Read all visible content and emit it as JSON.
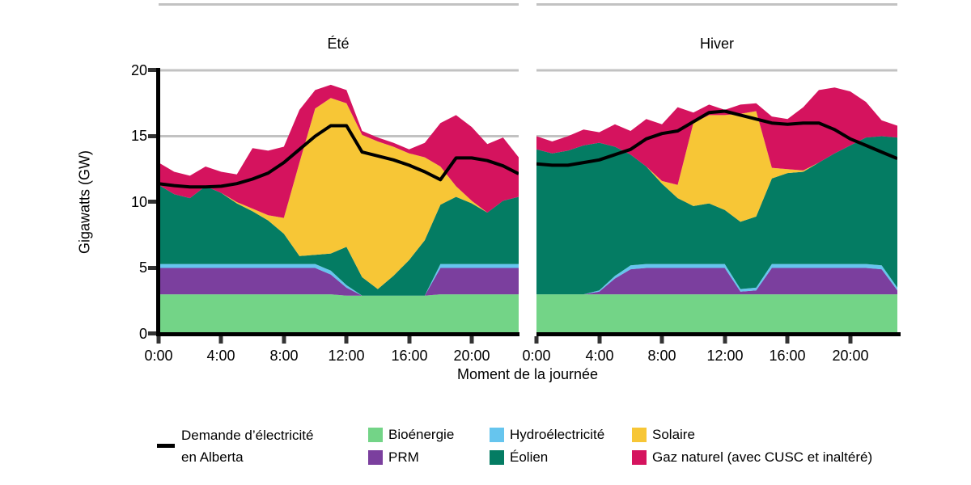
{
  "figure": {
    "y_axis_title": "Gigawatts (GW)",
    "x_axis_title": "Moment de la journée",
    "y_ticks": [
      "0",
      "5",
      "10",
      "15",
      "20"
    ],
    "x_ticks": [
      "0:00",
      "4:00",
      "8:00",
      "12:00",
      "16:00",
      "20:00"
    ],
    "panel_titles": {
      "summer": "Été",
      "winter": "Hiver"
    }
  },
  "legend": {
    "demand": {
      "label_line1": "Demande d’électricité",
      "label_line2": "en Alberta",
      "color": "#000000"
    },
    "items": [
      {
        "label": "Bioénergie",
        "color": "#73D487"
      },
      {
        "label": "PRM",
        "color": "#7B3F9E"
      },
      {
        "label": "Hydroélectricité",
        "color": "#66C5EE"
      },
      {
        "label": "Éolien",
        "color": "#047C63"
      },
      {
        "label": "Solaire",
        "color": "#F7C636"
      },
      {
        "label": "Gaz naturel (avec CUSC et inaltéré)",
        "color": "#D5135E"
      }
    ]
  },
  "chart_data": {
    "type": "area",
    "title": "",
    "xlabel": "Moment de la journée",
    "ylabel": "Gigawatts (GW)",
    "x": [
      0,
      1,
      2,
      3,
      4,
      5,
      6,
      7,
      8,
      9,
      10,
      11,
      12,
      13,
      14,
      15,
      16,
      17,
      18,
      19,
      20,
      21,
      22,
      23
    ],
    "ylim": [
      0,
      20
    ],
    "gridlines": [
      5,
      10,
      15,
      20,
      25
    ],
    "colors": {
      "gridline": "#C2C2C2",
      "demand": "#000000"
    },
    "stack_order": [
      "Bioénergie",
      "PRM",
      "Hydroélectricité",
      "Éolien",
      "Solaire",
      "Gaz naturel (avec CUSC et inaltéré)"
    ],
    "panels": [
      {
        "id": "summer",
        "title": "Été",
        "series": [
          {
            "name": "Bioénergie",
            "color": "#73D487",
            "values": [
              3,
              3,
              3,
              3,
              3,
              3,
              3,
              3,
              3,
              3,
              3,
              3,
              2.9,
              2.9,
              2.9,
              2.9,
              2.9,
              2.9,
              3,
              3,
              3,
              3,
              3,
              3
            ]
          },
          {
            "name": "PRM",
            "color": "#7B3F9E",
            "values": [
              2,
              2,
              2,
              2,
              2,
              2,
              2,
              2,
              2,
              2,
              2,
              1.5,
              0.6,
              0,
              0,
              0,
              0,
              0,
              2,
              2,
              2,
              2,
              2,
              2
            ]
          },
          {
            "name": "Hydroélectricité",
            "color": "#66C5EE",
            "values": [
              0.3,
              0.3,
              0.3,
              0.3,
              0.3,
              0.3,
              0.3,
              0.3,
              0.3,
              0.3,
              0.3,
              0.3,
              0.2,
              0,
              0,
              0,
              0,
              0,
              0.3,
              0.3,
              0.3,
              0.3,
              0.3,
              0.3
            ]
          },
          {
            "name": "Éolien",
            "color": "#047C63",
            "values": [
              6,
              5.3,
              5,
              5.9,
              5.4,
              4.6,
              4,
              3.3,
              2.3,
              0.6,
              0.7,
              1.3,
              2.9,
              1.4,
              0.5,
              1.5,
              2.7,
              4.2,
              4.5,
              5.1,
              4.6,
              3.9,
              4.8,
              5.1
            ]
          },
          {
            "name": "Solaire",
            "color": "#F7C636",
            "values": [
              0,
              0,
              0,
              0,
              0,
              0.1,
              0.2,
              0.4,
              1.2,
              7.1,
              11.1,
              11.8,
              10.9,
              10.8,
              11.2,
              9.8,
              8.1,
              6.3,
              2.9,
              0.8,
              0.2,
              0,
              0,
              0
            ]
          },
          {
            "name": "Gaz naturel (avec CUSC et inaltéré)",
            "color": "#D5135E",
            "values": [
              1.7,
              1.7,
              1.7,
              1.5,
              1.6,
              2.1,
              4.6,
              4.9,
              5.4,
              4,
              1.4,
              1,
              1,
              0.3,
              0.3,
              0.3,
              0.3,
              1.1,
              3.3,
              5.4,
              5.6,
              5.2,
              4.8,
              3
            ]
          }
        ],
        "demand": {
          "name": "Demande d’électricité en Alberta",
          "color": "#000000",
          "values": [
            11.4,
            11.25,
            11.15,
            11.15,
            11.2,
            11.4,
            11.75,
            12.2,
            13,
            14,
            15,
            15.8,
            15.8,
            13.8,
            13.5,
            13.2,
            12.8,
            12.3,
            11.7,
            13.35,
            13.35,
            13.15,
            12.75,
            12.15
          ]
        }
      },
      {
        "id": "winter",
        "title": "Hiver",
        "series": [
          {
            "name": "Bioénergie",
            "color": "#73D487",
            "values": [
              3,
              3,
              3,
              3,
              3,
              3,
              3,
              3,
              3,
              3,
              3,
              3,
              3,
              3,
              3,
              3,
              3,
              3,
              3,
              3,
              3,
              3,
              3,
              3
            ]
          },
          {
            "name": "PRM",
            "color": "#7B3F9E",
            "values": [
              0,
              0,
              0,
              0,
              0.2,
              1.2,
              1.9,
              2,
              2,
              2,
              2,
              2,
              2,
              0.2,
              0.3,
              2,
              2,
              2,
              2,
              2,
              2,
              2,
              1.9,
              0.3
            ]
          },
          {
            "name": "Hydroélectricité",
            "color": "#66C5EE",
            "values": [
              0,
              0,
              0,
              0,
              0.1,
              0.2,
              0.3,
              0.3,
              0.3,
              0.3,
              0.3,
              0.3,
              0.3,
              0.2,
              0.2,
              0.3,
              0.3,
              0.3,
              0.3,
              0.3,
              0.3,
              0.3,
              0.3,
              0.2
            ]
          },
          {
            "name": "Éolien",
            "color": "#047C63",
            "values": [
              11,
              10.7,
              10.9,
              11.3,
              11.2,
              9.8,
              8.4,
              7.4,
              6.1,
              5,
              4.4,
              4.6,
              4.1,
              5.1,
              5.4,
              6.5,
              6.9,
              7,
              7.7,
              8.4,
              9,
              9.6,
              9.8,
              11.4
            ]
          },
          {
            "name": "Solaire",
            "color": "#F7C636",
            "values": [
              0,
              0,
              0,
              0,
              0,
              0,
              0,
              0,
              0.2,
              1,
              6.3,
              6.7,
              7.2,
              8.2,
              8,
              0.8,
              0.3,
              0.1,
              0,
              0,
              0,
              0,
              0,
              0
            ]
          },
          {
            "name": "Gaz naturel (avec CUSC et inaltéré)",
            "color": "#D5135E",
            "values": [
              1,
              0.9,
              1.1,
              1.2,
              0.8,
              1.7,
              1.8,
              3.6,
              4.3,
              5.9,
              0.8,
              0.8,
              0.4,
              0.7,
              0.6,
              3.9,
              3.8,
              4.8,
              5.5,
              5,
              4.1,
              2.7,
              1.2,
              0.9
            ]
          }
        ],
        "demand": {
          "name": "Demande d’électricité en Alberta",
          "color": "#000000",
          "values": [
            12.9,
            12.8,
            12.8,
            13,
            13.2,
            13.6,
            14,
            14.8,
            15.2,
            15.4,
            16.1,
            16.8,
            16.9,
            16.6,
            16.3,
            16,
            15.9,
            16,
            16,
            15.5,
            14.8,
            14.3,
            13.8,
            13.3
          ]
        }
      }
    ]
  }
}
